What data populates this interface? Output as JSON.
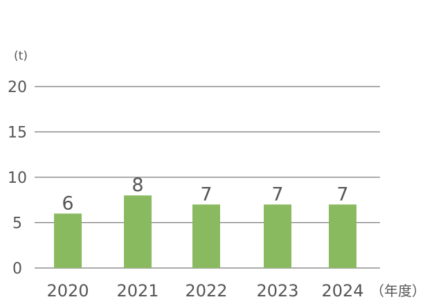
{
  "chart_data": {
    "type": "bar",
    "title": "",
    "categories": [
      "2020",
      "2021",
      "2022",
      "2023",
      "2024"
    ],
    "values": [
      6,
      8,
      7,
      7,
      7
    ],
    "ylabel": "(t)",
    "xlabel": "（年度）",
    "ylim": [
      0,
      20
    ],
    "yticks": [
      0,
      5,
      10,
      15,
      20
    ],
    "grid": true,
    "legend": "none",
    "bar_color": "#8aba5f",
    "grid_color": "#777777",
    "text_color": "#555555"
  }
}
